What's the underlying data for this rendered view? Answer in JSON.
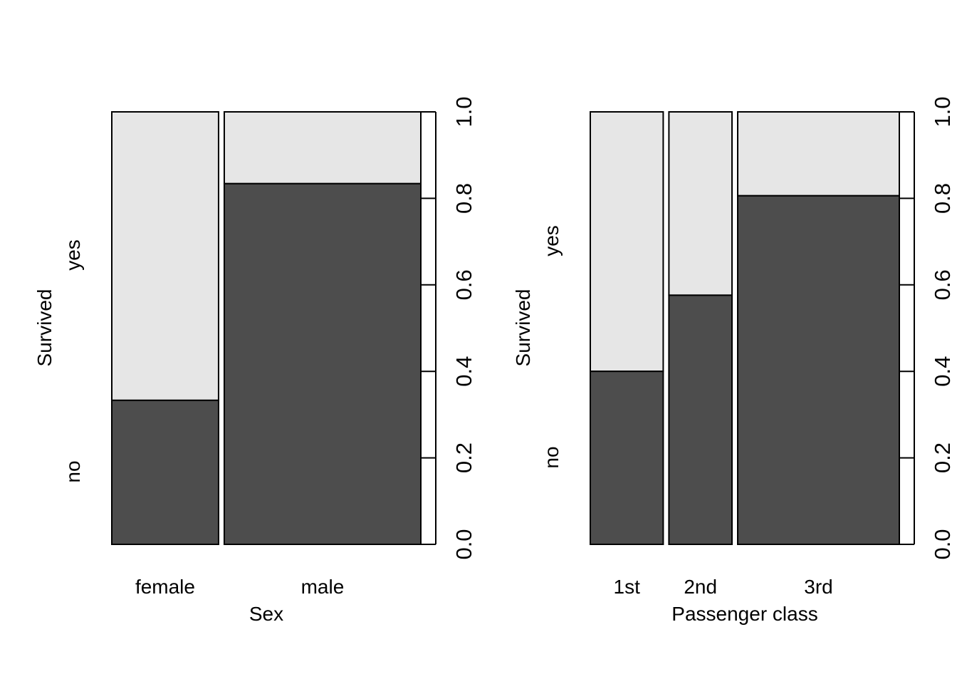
{
  "colors": {
    "no": "#4d4d4d",
    "yes": "#e6e6e6",
    "outline": "#000000",
    "background": "#ffffff"
  },
  "chart_data": [
    {
      "type": "spineplot",
      "xlabel": "Sex",
      "ylabel": "Survived",
      "levels": [
        "no",
        "yes"
      ],
      "categories": [
        "female",
        "male"
      ],
      "category_widths": [
        0.352,
        0.648
      ],
      "no_proportions": [
        0.333,
        0.834
      ],
      "y_ticks": [
        "0.0",
        "0.2",
        "0.4",
        "0.6",
        "0.8",
        "1.0"
      ],
      "ylim": [
        0,
        1
      ]
    },
    {
      "type": "spineplot",
      "xlabel": "Passenger class",
      "ylabel": "Survived",
      "levels": [
        "no",
        "yes"
      ],
      "categories": [
        "1st",
        "2nd",
        "3rd"
      ],
      "category_widths": [
        0.245,
        0.212,
        0.543
      ],
      "no_proportions": [
        0.4,
        0.576,
        0.806
      ],
      "y_ticks": [
        "0.0",
        "0.2",
        "0.4",
        "0.6",
        "0.8",
        "1.0"
      ],
      "ylim": [
        0,
        1
      ]
    }
  ]
}
